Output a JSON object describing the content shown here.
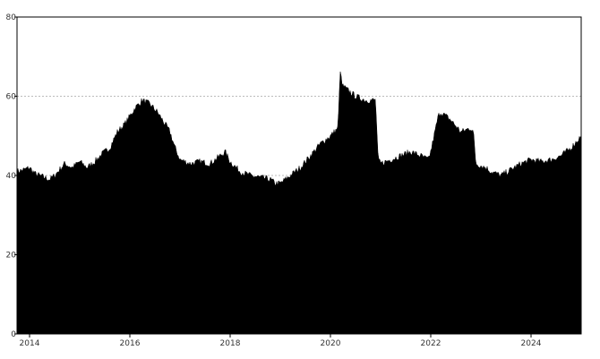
{
  "chart_data": {
    "type": "area",
    "title": "",
    "xlabel": "",
    "ylabel": "",
    "xlim": [
      2013.75,
      2025.0
    ],
    "ylim": [
      0,
      80
    ],
    "x_ticks": [
      2014,
      2016,
      2018,
      2020,
      2022,
      2024
    ],
    "x_tick_labels": [
      "2014",
      "2016",
      "2018",
      "2020",
      "2022",
      "2024"
    ],
    "y_ticks": [
      0,
      20,
      40,
      60,
      80
    ],
    "y_tick_labels": [
      "0",
      "20",
      "40",
      "60",
      "80"
    ],
    "grid": "horizontal dotted",
    "legend": "none",
    "fill_color": "#000000",
    "grid_color": "#bbbbbb",
    "x": [
      2013.75,
      2013.9,
      2014.0,
      2014.1,
      2014.2,
      2014.3,
      2014.4,
      2014.5,
      2014.6,
      2014.7,
      2014.85,
      2015.0,
      2015.15,
      2015.3,
      2015.45,
      2015.6,
      2015.75,
      2015.9,
      2016.0,
      2016.1,
      2016.25,
      2016.4,
      2016.55,
      2016.7,
      2016.8,
      2016.9,
      2017.0,
      2017.2,
      2017.4,
      2017.6,
      2017.8,
      2017.9,
      2018.0,
      2018.2,
      2018.4,
      2018.6,
      2018.8,
      2018.9,
      2019.0,
      2019.2,
      2019.4,
      2019.6,
      2019.8,
      2020.0,
      2020.15,
      2020.2,
      2020.22,
      2020.3,
      2020.5,
      2020.7,
      2020.9,
      2020.95,
      2021.0,
      2021.2,
      2021.4,
      2021.6,
      2021.8,
      2021.95,
      2022.0,
      2022.15,
      2022.2,
      2022.4,
      2022.6,
      2022.8,
      2022.85,
      2022.9,
      2023.1,
      2023.2,
      2023.4,
      2023.6,
      2023.8,
      2024.0,
      2024.2,
      2024.4,
      2024.6,
      2024.8,
      2025.0
    ],
    "values": [
      41,
      41.5,
      42,
      40.5,
      40,
      39.5,
      39,
      40,
      41.5,
      43,
      42,
      43.5,
      42,
      43.5,
      45.5,
      47,
      51,
      53,
      55,
      57,
      59,
      58,
      56,
      53,
      51,
      47,
      44,
      43,
      43.5,
      43,
      45,
      46,
      43.5,
      41,
      40,
      39.5,
      39,
      38,
      38,
      40,
      42,
      45,
      48,
      50,
      52,
      68,
      63,
      62,
      60,
      59,
      59,
      44,
      43,
      44,
      45,
      46,
      45,
      44,
      46,
      55,
      56,
      54,
      51,
      52,
      51,
      43,
      42,
      41,
      40,
      41.5,
      43,
      44,
      43.5,
      44,
      45,
      47,
      50
    ]
  }
}
